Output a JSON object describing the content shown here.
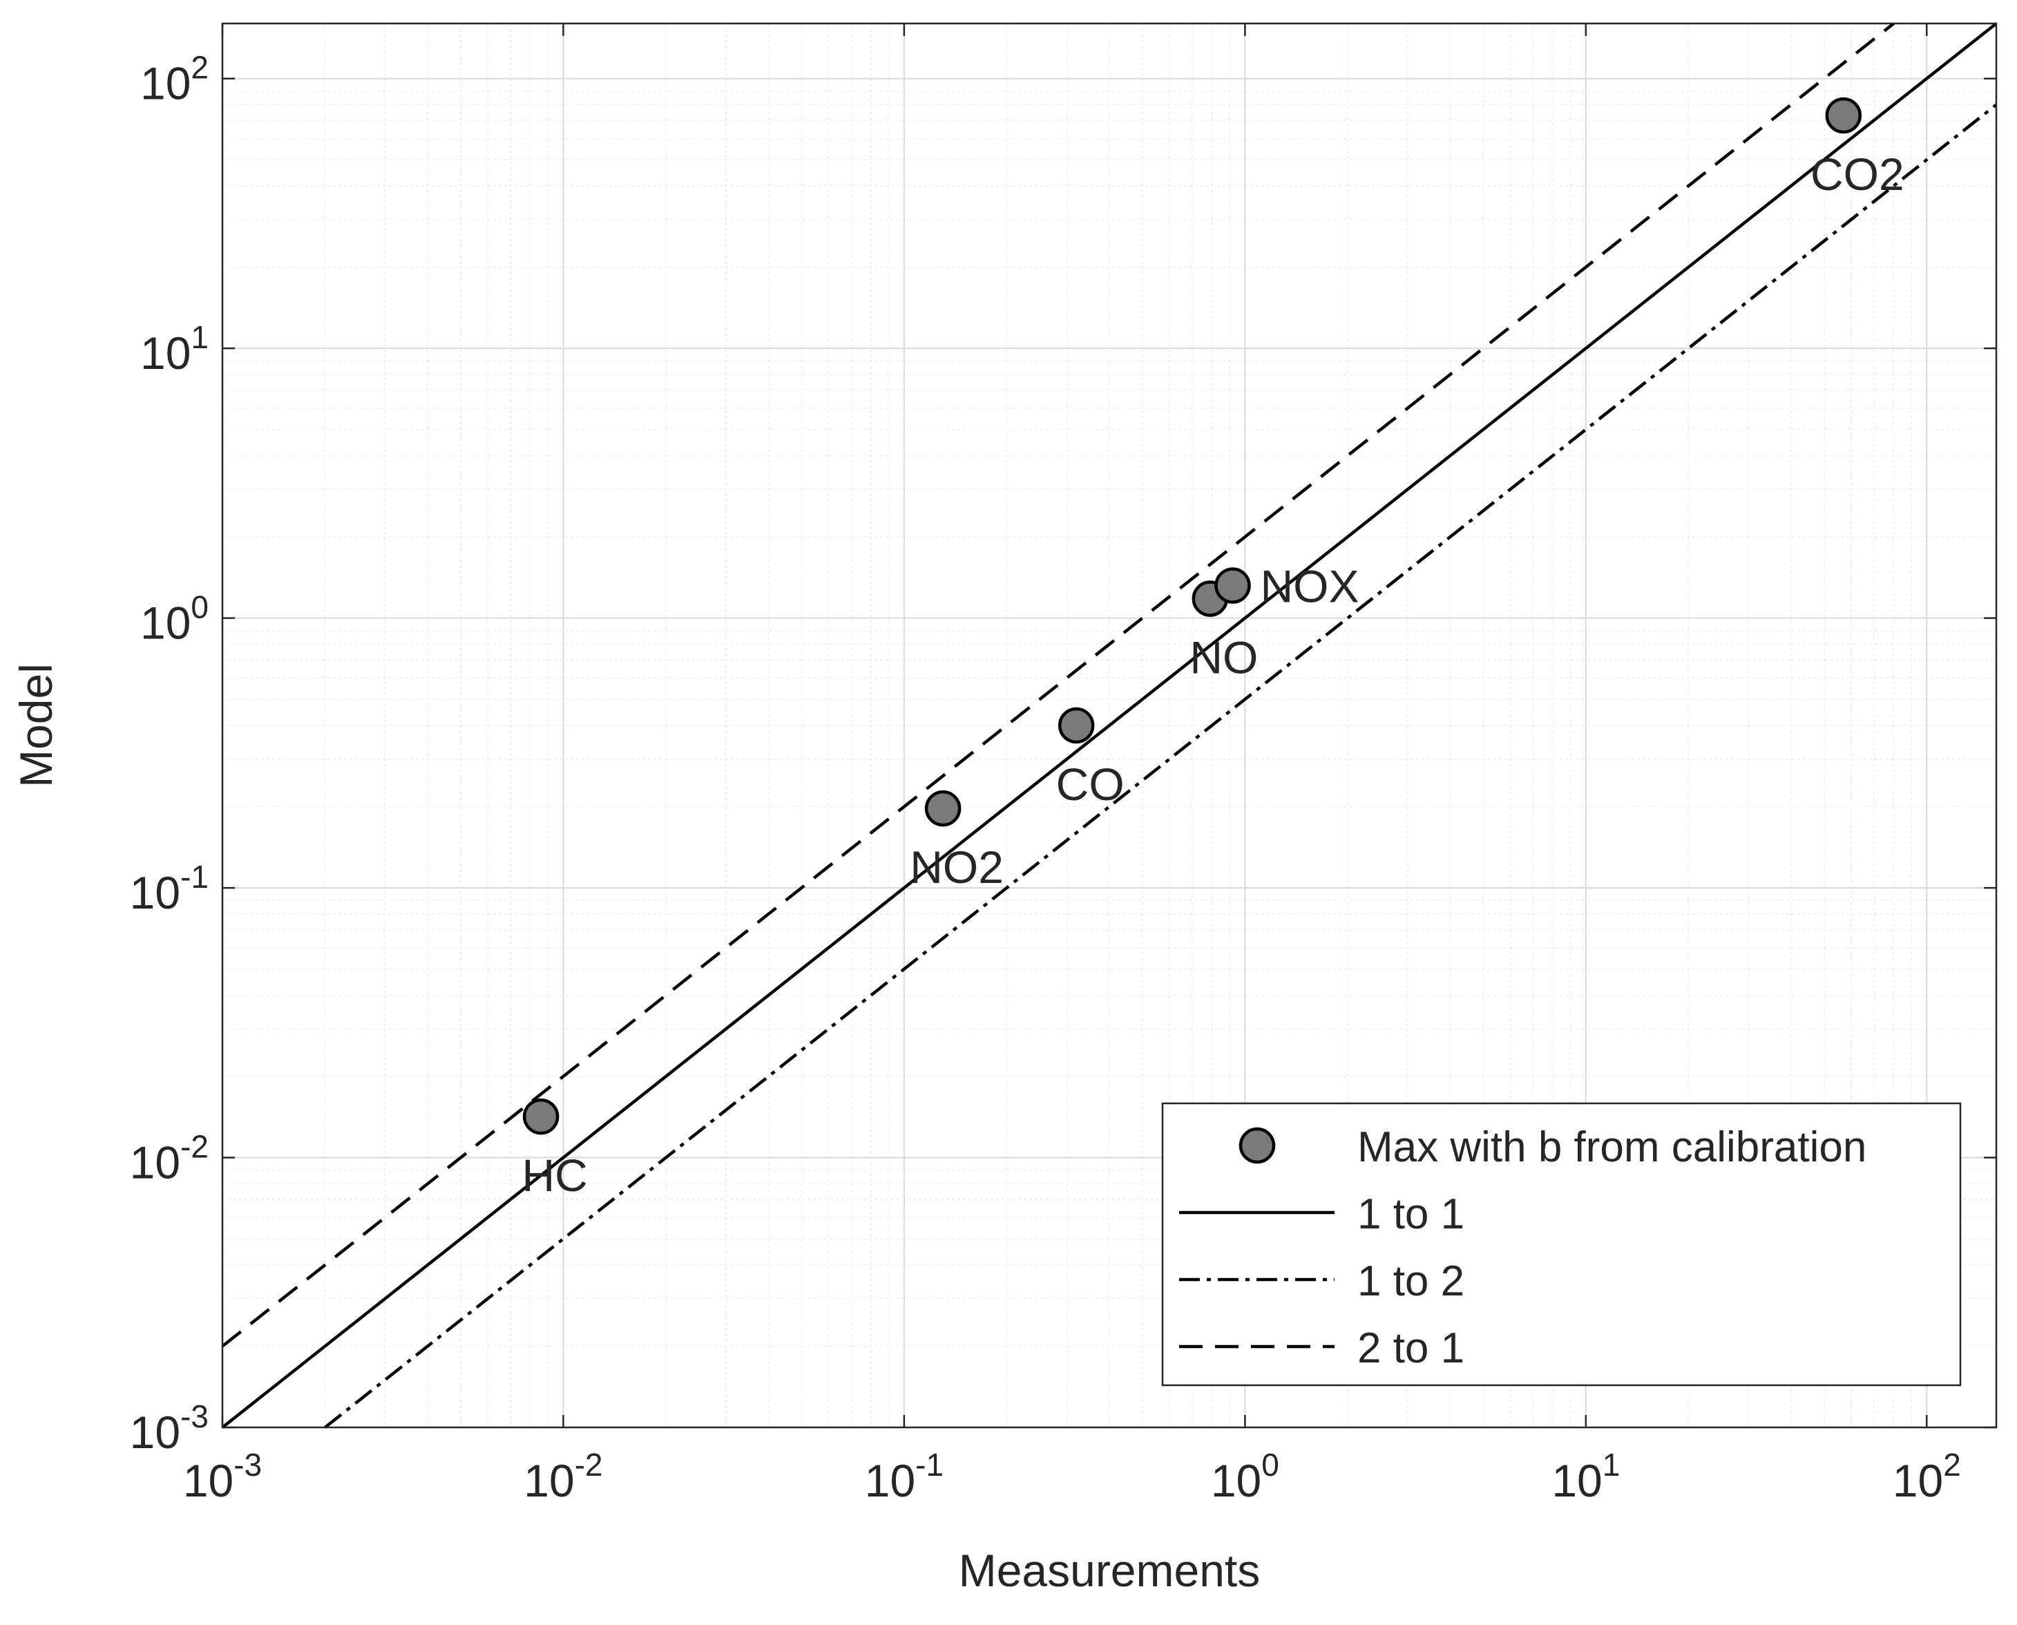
{
  "chart_data": {
    "type": "scatter",
    "scale": "log-log",
    "xlabel": "Measurements",
    "ylabel": "Model",
    "xlim": [
      0.001,
      160
    ],
    "ylim": [
      0.001,
      160
    ],
    "grid": true,
    "minor_grid": true,
    "xticks": [
      {
        "value": 0.001,
        "base": "10",
        "exp": "-3"
      },
      {
        "value": 0.01,
        "base": "10",
        "exp": "-2"
      },
      {
        "value": 0.1,
        "base": "10",
        "exp": "-1"
      },
      {
        "value": 1,
        "base": "10",
        "exp": "0"
      },
      {
        "value": 10,
        "base": "10",
        "exp": "1"
      },
      {
        "value": 100,
        "base": "10",
        "exp": "2"
      }
    ],
    "yticks": [
      {
        "value": 0.001,
        "base": "10",
        "exp": "-3"
      },
      {
        "value": 0.01,
        "base": "10",
        "exp": "-2"
      },
      {
        "value": 0.1,
        "base": "10",
        "exp": "-1"
      },
      {
        "value": 1,
        "base": "10",
        "exp": "0"
      },
      {
        "value": 10,
        "base": "10",
        "exp": "1"
      },
      {
        "value": 100,
        "base": "10",
        "exp": "2"
      }
    ],
    "points": [
      {
        "label": "HC",
        "x": 0.0086,
        "y": 0.0142,
        "label_pos": "below"
      },
      {
        "label": "NO2",
        "x": 0.13,
        "y": 0.197,
        "label_pos": "below"
      },
      {
        "label": "CO",
        "x": 0.32,
        "y": 0.4,
        "label_pos": "below"
      },
      {
        "label": "NO",
        "x": 0.79,
        "y": 1.18,
        "label_pos": "below"
      },
      {
        "label": "NOX",
        "x": 0.92,
        "y": 1.32,
        "label_pos": "right"
      },
      {
        "label": "CO2",
        "x": 57,
        "y": 73,
        "label_pos": "below"
      }
    ],
    "lines": [
      {
        "name": "1 to 1",
        "slope": 1,
        "style": "solid"
      },
      {
        "name": "1 to 2",
        "slope": 0.5,
        "style": "dashdot"
      },
      {
        "name": "2 to 1",
        "slope": 2,
        "style": "dashed"
      }
    ],
    "legend": {
      "position": "bottom-right",
      "entries": [
        {
          "label": "Max with b from calibration",
          "kind": "marker"
        },
        {
          "label": "1 to 1",
          "kind": "solid"
        },
        {
          "label": "1 to 2",
          "kind": "dashdot"
        },
        {
          "label": "2 to 1",
          "kind": "dashed"
        }
      ]
    },
    "colors": {
      "marker_fill": "#7a7a7a",
      "marker_edge": "#000000",
      "line": "#000000",
      "grid_major": "#d9d9d9",
      "grid_minor": "#ececec",
      "text": "#262626"
    }
  }
}
